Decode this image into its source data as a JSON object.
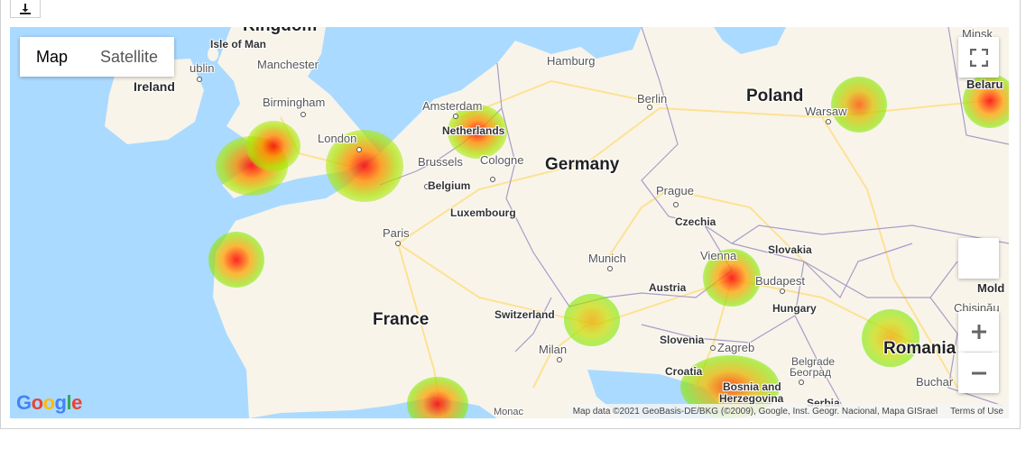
{
  "map": {
    "type_control": {
      "map_label": "Map",
      "satellite_label": "Satellite",
      "active": "Map"
    },
    "attribution": "Map data ©2021 GeoBasis-DE/BKG (©2009), Google, Inst. Geogr. Nacional, Mapa GISrael",
    "terms_label": "Terms of Use",
    "logo_text": "Google",
    "colors": {
      "water": "#aadaff",
      "land": "#f8f4ea",
      "border": "#a89cc8",
      "road": "#fde293"
    },
    "labels": {
      "kingdom": "Kingdom",
      "isle_of_man": "Isle of Man",
      "dublin": "ublin",
      "ireland": "Ireland",
      "manchester": "Manchester",
      "birmingham": "Birmingham",
      "london": "London",
      "amsterdam": "Amsterdam",
      "netherlands": "Netherlands",
      "hamburg": "Hamburg",
      "berlin": "Berlin",
      "poland": "Poland",
      "warsaw": "Warsaw",
      "minsk": "Minsk",
      "belarus": "Belaru",
      "brussels": "Brussels",
      "cologne": "Cologne",
      "belgium": "Belgium",
      "germany": "Germany",
      "luxembourg": "Luxembourg",
      "prague": "Prague",
      "czechia": "Czechia",
      "paris": "Paris",
      "slovakia": "Slovakia",
      "vienna": "Vienna",
      "munich": "Munich",
      "austria": "Austria",
      "budapest": "Budapest",
      "hungary": "Hungary",
      "moldova": "Mold",
      "chisinau": "Chișinău",
      "france": "France",
      "switzerland": "Switzerland",
      "slovenia": "Slovenia",
      "zagreb": "Zagreb",
      "romania": "Romania",
      "milan": "Milan",
      "croatia": "Croatia",
      "bosnia": "Bosnia and",
      "herzegovina": "Herzegovina",
      "belgrade": "Belgrade",
      "belgrade_cyr": "Београд",
      "serbia": "Serbia",
      "bucharest": "Buchar",
      "monaco": "Monac"
    }
  }
}
